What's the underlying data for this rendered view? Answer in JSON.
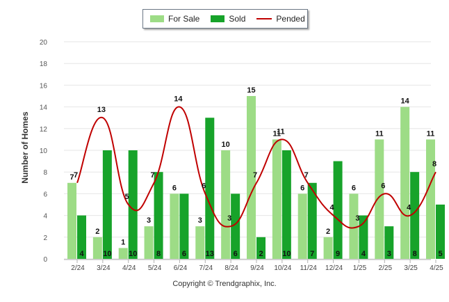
{
  "legend": {
    "for_sale": "For Sale",
    "sold": "Sold",
    "pended": "Pended"
  },
  "copyright": "Copyright © Trendgraphix, Inc.",
  "colors": {
    "for_sale": "#9ddc86",
    "sold": "#17a32a",
    "pended": "#c00000",
    "grid": "#e6e6e6"
  },
  "chart_data": {
    "type": "bar",
    "ylabel": "Number of Homes",
    "ylim": [
      0,
      20
    ],
    "yticks": [
      0,
      2,
      4,
      6,
      8,
      10,
      12,
      14,
      16,
      18,
      20
    ],
    "categories": [
      "2/24",
      "3/24",
      "4/24",
      "5/24",
      "6/24",
      "7/24",
      "8/24",
      "9/24",
      "10/24",
      "11/24",
      "12/24",
      "1/25",
      "2/25",
      "3/25",
      "4/25"
    ],
    "series": [
      {
        "name": "For Sale",
        "type": "bar",
        "values": [
          7,
          2,
          1,
          3,
          6,
          3,
          10,
          15,
          11,
          6,
          2,
          6,
          11,
          14,
          11
        ]
      },
      {
        "name": "Sold",
        "type": "bar",
        "values": [
          4,
          10,
          10,
          8,
          6,
          13,
          6,
          2,
          10,
          7,
          9,
          4,
          3,
          8,
          5
        ]
      },
      {
        "name": "Pended",
        "type": "line",
        "values": [
          7,
          13,
          5,
          7,
          14,
          6,
          3,
          7,
          11,
          7,
          4,
          3,
          6,
          4,
          8
        ]
      }
    ],
    "legend_position": "top-center",
    "grid": true
  }
}
